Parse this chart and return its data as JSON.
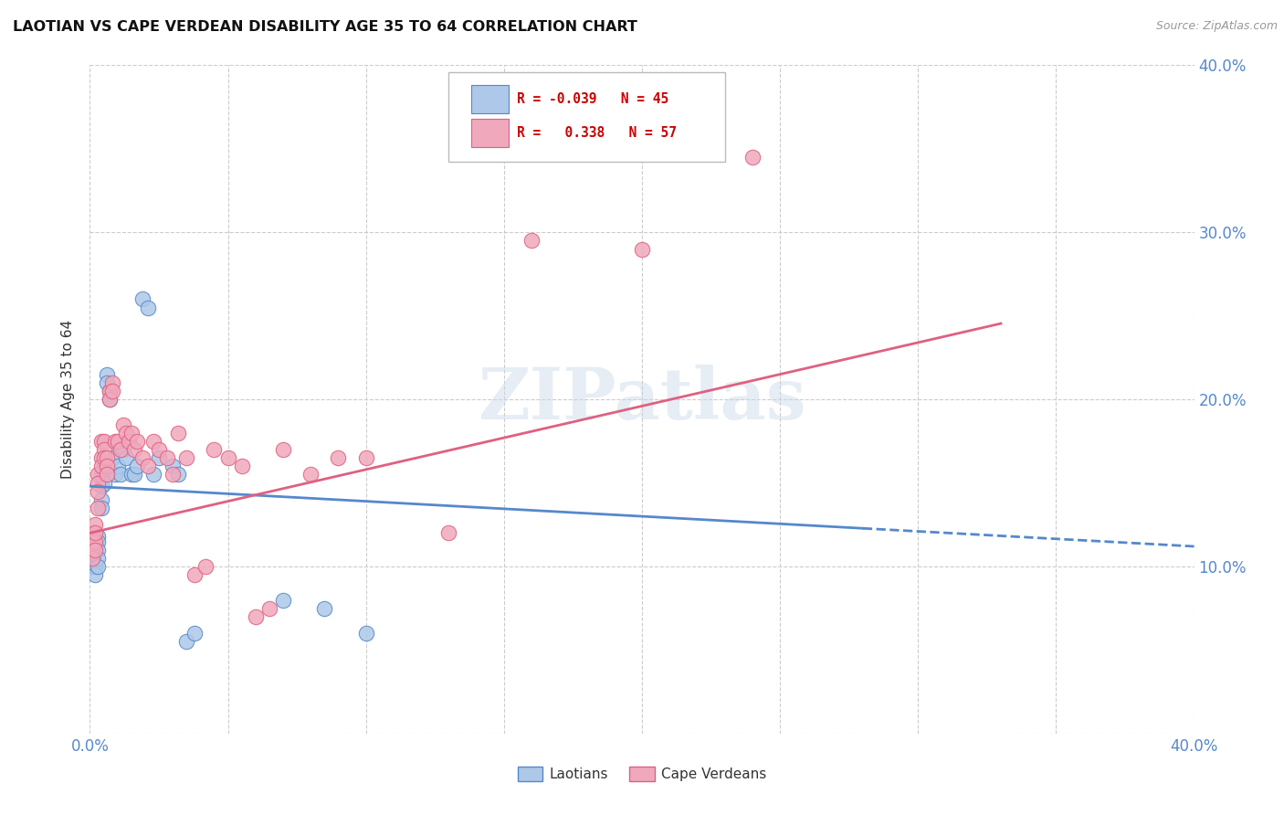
{
  "title": "LAOTIAN VS CAPE VERDEAN DISABILITY AGE 35 TO 64 CORRELATION CHART",
  "source": "Source: ZipAtlas.com",
  "ylabel": "Disability Age 35 to 64",
  "xlim": [
    0.0,
    0.4
  ],
  "ylim": [
    0.0,
    0.4
  ],
  "laotian_color": "#adc8e8",
  "cape_color": "#f0a8bc",
  "laotian_line_color": "#5588cc",
  "cape_line_color": "#e06080",
  "watermark": "ZIPatlas",
  "legend_r_laotian": "-0.039",
  "legend_n_laotian": "45",
  "legend_r_cape": "0.338",
  "legend_n_cape": "57",
  "laotian_x": [
    0.001,
    0.001,
    0.001,
    0.001,
    0.002,
    0.002,
    0.002,
    0.002,
    0.002,
    0.003,
    0.003,
    0.003,
    0.003,
    0.003,
    0.004,
    0.004,
    0.004,
    0.004,
    0.005,
    0.005,
    0.005,
    0.006,
    0.006,
    0.007,
    0.007,
    0.008,
    0.009,
    0.01,
    0.011,
    0.012,
    0.013,
    0.015,
    0.016,
    0.017,
    0.019,
    0.021,
    0.023,
    0.025,
    0.03,
    0.032,
    0.035,
    0.038,
    0.07,
    0.085,
    0.1
  ],
  "laotian_y": [
    0.11,
    0.108,
    0.105,
    0.1,
    0.115,
    0.112,
    0.108,
    0.1,
    0.095,
    0.118,
    0.115,
    0.11,
    0.105,
    0.1,
    0.155,
    0.148,
    0.14,
    0.135,
    0.16,
    0.155,
    0.15,
    0.215,
    0.21,
    0.205,
    0.2,
    0.165,
    0.155,
    0.16,
    0.155,
    0.17,
    0.165,
    0.155,
    0.155,
    0.16,
    0.26,
    0.255,
    0.155,
    0.165,
    0.16,
    0.155,
    0.055,
    0.06,
    0.08,
    0.075,
    0.06
  ],
  "cape_x": [
    0.001,
    0.001,
    0.001,
    0.001,
    0.002,
    0.002,
    0.002,
    0.002,
    0.003,
    0.003,
    0.003,
    0.003,
    0.004,
    0.004,
    0.004,
    0.005,
    0.005,
    0.005,
    0.006,
    0.006,
    0.006,
    0.007,
    0.007,
    0.008,
    0.008,
    0.009,
    0.01,
    0.011,
    0.012,
    0.013,
    0.014,
    0.015,
    0.016,
    0.017,
    0.019,
    0.021,
    0.023,
    0.025,
    0.028,
    0.03,
    0.032,
    0.035,
    0.038,
    0.042,
    0.045,
    0.05,
    0.055,
    0.06,
    0.065,
    0.07,
    0.08,
    0.09,
    0.1,
    0.13,
    0.16,
    0.2,
    0.24
  ],
  "cape_y": [
    0.12,
    0.115,
    0.11,
    0.105,
    0.115,
    0.11,
    0.125,
    0.12,
    0.155,
    0.15,
    0.145,
    0.135,
    0.175,
    0.165,
    0.16,
    0.175,
    0.17,
    0.165,
    0.165,
    0.16,
    0.155,
    0.205,
    0.2,
    0.21,
    0.205,
    0.175,
    0.175,
    0.17,
    0.185,
    0.18,
    0.175,
    0.18,
    0.17,
    0.175,
    0.165,
    0.16,
    0.175,
    0.17,
    0.165,
    0.155,
    0.18,
    0.165,
    0.095,
    0.1,
    0.17,
    0.165,
    0.16,
    0.07,
    0.075,
    0.17,
    0.155,
    0.165,
    0.165,
    0.12,
    0.295,
    0.29,
    0.345
  ]
}
